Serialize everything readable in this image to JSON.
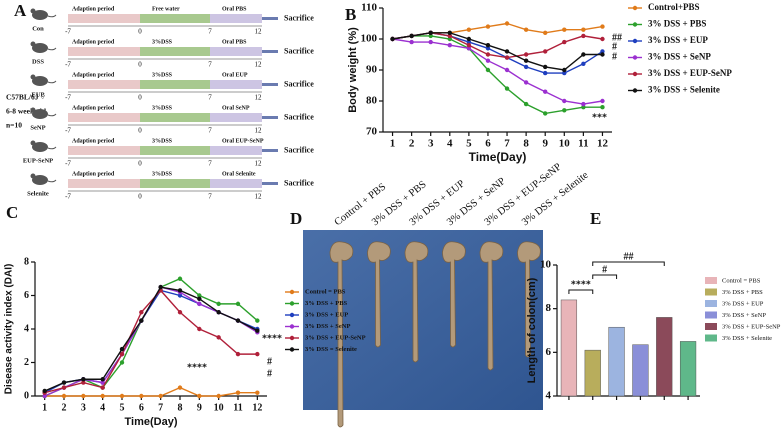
{
  "panel_a": {
    "label": "A",
    "subjects": [
      "C57BL/6J ♂",
      "6-8 week old",
      "n=10"
    ],
    "rows": [
      {
        "group": "Con",
        "phases": [
          "Adaption period",
          "Free water",
          "Oral PBS"
        ]
      },
      {
        "group": "DSS",
        "phases": [
          "Adaption period",
          "3%DSS",
          "Oral PBS"
        ]
      },
      {
        "group": "EUP",
        "phases": [
          "Adaption period",
          "3%DSS",
          "Oral EUP"
        ]
      },
      {
        "group": "SeNP",
        "phases": [
          "Adaption period",
          "3%DSS",
          "Oral SeNP"
        ]
      },
      {
        "group": "EUP-SeNP",
        "phases": [
          "Adaption period",
          "3%DSS",
          "Oral EUP-SeNP"
        ]
      },
      {
        "group": "Selenite",
        "phases": [
          "Adaption period",
          "3%DSS",
          "Oral Selenite"
        ]
      }
    ],
    "days": [
      "-7",
      "0",
      "7",
      "12"
    ],
    "endpoint": "Sacrifice"
  },
  "panel_d": {
    "label": "D",
    "groups": [
      "Control + PBS",
      "3% DSS + PBS",
      "3% DSS + EUP",
      "3% DSS + SeNP",
      "3% DSS + EUP-SeNP",
      "3% DSS + Selenite"
    ]
  },
  "chart_data": [
    {
      "type": "line",
      "label": "B",
      "x_label": "Time(Day)",
      "y_label": "Body weight (%)",
      "x": [
        1,
        2,
        3,
        4,
        5,
        6,
        7,
        8,
        9,
        10,
        11,
        12
      ],
      "xlim": [
        0.5,
        12.5
      ],
      "xticks": [
        1,
        2,
        3,
        4,
        5,
        6,
        7,
        8,
        9,
        10,
        11,
        12
      ],
      "ylim": [
        70,
        110
      ],
      "yticks": [
        70,
        80,
        90,
        100,
        110
      ],
      "series": [
        {
          "name": "Control+PBS",
          "color": "#e07b1a",
          "values": [
            100,
            101,
            102,
            102,
            103,
            104,
            105,
            103,
            102,
            103,
            103,
            104
          ]
        },
        {
          "name": "3% DSS + PBS",
          "color": "#2ca02c",
          "values": [
            100,
            101,
            101,
            100,
            97,
            90,
            84,
            79,
            76,
            77,
            78,
            78
          ]
        },
        {
          "name": "3% DSS + EUP",
          "color": "#1f3fbf",
          "values": [
            100,
            101,
            102,
            101,
            99,
            97,
            94,
            91,
            89,
            89,
            92,
            96
          ]
        },
        {
          "name": "3% DSS + SeNP",
          "color": "#9b30d0",
          "values": [
            100,
            99,
            99,
            98,
            97,
            93,
            90,
            86,
            83,
            80,
            79,
            80
          ]
        },
        {
          "name": "3% DSS + EUP-SeNP",
          "color": "#b0203a",
          "values": [
            100,
            101,
            102,
            101,
            98,
            95,
            94,
            95,
            96,
            99,
            101,
            100
          ]
        },
        {
          "name": "3% DSS + Selenite",
          "color": "#111111",
          "values": [
            100,
            101,
            102,
            102,
            100,
            98,
            96,
            93,
            91,
            90,
            95,
            95
          ]
        }
      ],
      "annotations": [
        {
          "text": "##",
          "color": "#b0203a"
        },
        {
          "text": "#",
          "color": "#111111"
        },
        {
          "text": "#",
          "color": "#1f3fbf"
        },
        {
          "text": "***",
          "color": "#2ca02c"
        }
      ]
    },
    {
      "type": "line",
      "label": "C",
      "x_label": "Time(Day)",
      "y_label": "Disease activity index (DAI)",
      "x": [
        1,
        2,
        3,
        4,
        5,
        6,
        7,
        8,
        9,
        10,
        11,
        12
      ],
      "xlim": [
        0.5,
        12.5
      ],
      "xticks": [
        1,
        2,
        3,
        4,
        5,
        6,
        7,
        8,
        9,
        10,
        11,
        12
      ],
      "ylim": [
        0,
        8
      ],
      "yticks": [
        0,
        2,
        4,
        6,
        8
      ],
      "series": [
        {
          "name": "Control = PBS",
          "color": "#e07b1a",
          "values": [
            0,
            0,
            0,
            0,
            0,
            0,
            0,
            0.5,
            0,
            0,
            0.2,
            0.2
          ]
        },
        {
          "name": "3% DSS + PBS",
          "color": "#2ca02c",
          "values": [
            0,
            0.5,
            1,
            0.5,
            2,
            4.5,
            6.5,
            7,
            6,
            5.5,
            5.5,
            4.5
          ]
        },
        {
          "name": "3% DSS + EUP",
          "color": "#1f3fbf",
          "values": [
            0.2,
            0.8,
            1,
            0.8,
            2.5,
            4.5,
            6.3,
            6,
            5.5,
            5,
            4.5,
            4
          ]
        },
        {
          "name": "3% DSS + SeNP",
          "color": "#9b30d0",
          "values": [
            0,
            0.5,
            1,
            0.8,
            2.5,
            4.5,
            6.5,
            6.2,
            5.5,
            5,
            4.5,
            3.8
          ]
        },
        {
          "name": "3% DSS + EUP-SeNP",
          "color": "#b0203a",
          "values": [
            0.2,
            0.5,
            0.8,
            0.5,
            2.5,
            5,
            6.3,
            5,
            4,
            3.5,
            2.5,
            2.5
          ]
        },
        {
          "name": "3% DSS = Selenite",
          "color": "#111111",
          "values": [
            0.3,
            0.8,
            1,
            1,
            2.8,
            4.5,
            6.5,
            6.3,
            5.8,
            5,
            4.5,
            3.9
          ]
        }
      ],
      "annotations": [
        {
          "text": "****",
          "color": "#2ca02c"
        },
        {
          "text": "****",
          "color": "#e07b1a"
        },
        {
          "text": "#",
          "color": "#b0203a"
        },
        {
          "text": "#",
          "color": "#b0203a"
        }
      ]
    },
    {
      "type": "bar",
      "label": "E",
      "y_label": "Length of colon(cm)",
      "categories": [
        "Control = PBS",
        "3% DSS + PBS",
        "3% DSS + EUP",
        "3% DSS + SeNP",
        "3% DSS + EUP-SeNP",
        "3% DSS + Selenite"
      ],
      "values": [
        8.4,
        6.1,
        7.15,
        6.35,
        7.6,
        6.5
      ],
      "colors": [
        "#e8b4b8",
        "#b8ad5c",
        "#9cb4e0",
        "#8a8fd8",
        "#8b4a5a",
        "#5fb88a"
      ],
      "ylim": [
        4,
        10
      ],
      "yticks": [
        4,
        6,
        8,
        10
      ],
      "annotations": [
        {
          "text": "****"
        },
        {
          "text": "#"
        },
        {
          "text": "##"
        }
      ]
    }
  ]
}
